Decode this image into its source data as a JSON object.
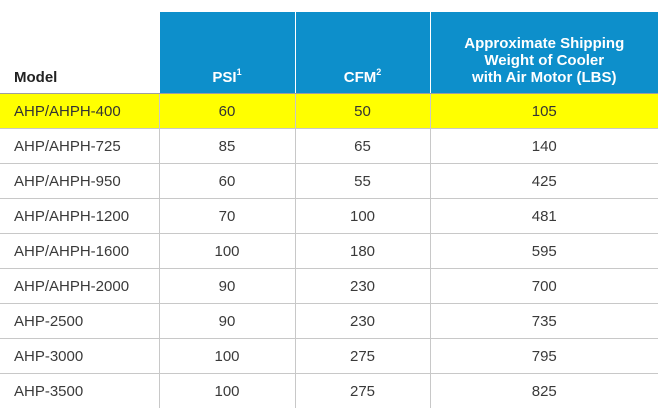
{
  "table": {
    "headers": {
      "model": "Model",
      "psi": "PSI",
      "psi_note": "1",
      "cfm": "CFM",
      "cfm_note": "2",
      "weight_line1": "Approximate Shipping",
      "weight_line2": "Weight of Cooler",
      "weight_line3": "with Air Motor (LBS)"
    },
    "highlight_color": "#ffff00",
    "header_color": "#0d8fcb",
    "rows": [
      {
        "model": "AHP/AHPH-400",
        "psi": "60",
        "cfm": "50",
        "weight": "105",
        "highlighted": true
      },
      {
        "model": "AHP/AHPH-725",
        "psi": "85",
        "cfm": "65",
        "weight": "140",
        "highlighted": false
      },
      {
        "model": "AHP/AHPH-950",
        "psi": "60",
        "cfm": "55",
        "weight": "425",
        "highlighted": false
      },
      {
        "model": "AHP/AHPH-1200",
        "psi": "70",
        "cfm": "100",
        "weight": "481",
        "highlighted": false
      },
      {
        "model": "AHP/AHPH-1600",
        "psi": "100",
        "cfm": "180",
        "weight": "595",
        "highlighted": false
      },
      {
        "model": "AHP/AHPH-2000",
        "psi": "90",
        "cfm": "230",
        "weight": "700",
        "highlighted": false
      },
      {
        "model": "AHP-2500",
        "psi": "90",
        "cfm": "230",
        "weight": "735",
        "highlighted": false
      },
      {
        "model": "AHP-3000",
        "psi": "100",
        "cfm": "275",
        "weight": "795",
        "highlighted": false
      },
      {
        "model": "AHP-3500",
        "psi": "100",
        "cfm": "275",
        "weight": "825",
        "highlighted": false
      }
    ]
  }
}
